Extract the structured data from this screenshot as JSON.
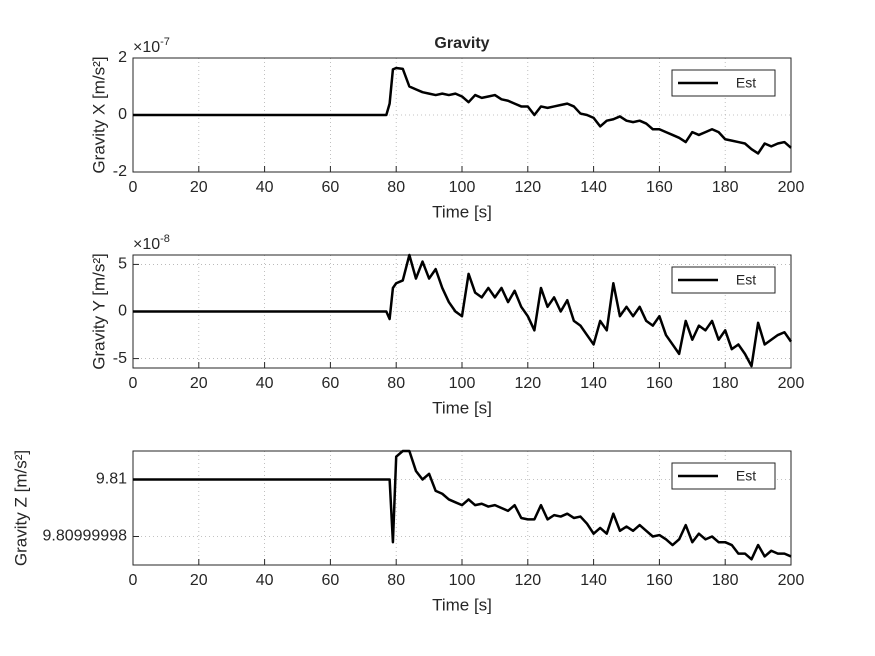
{
  "chart_data": [
    {
      "type": "line",
      "title": "Gravity",
      "xlabel": "Time [s]",
      "ylabel": "Gravity X [m/s²]",
      "y_multiplier": "×10",
      "y_exponent": "-7",
      "xlim": [
        0,
        200
      ],
      "xticks": [
        0,
        20,
        40,
        60,
        80,
        100,
        120,
        140,
        160,
        180,
        200
      ],
      "ylim": [
        -2,
        2
      ],
      "yticks": [
        -2,
        0,
        2
      ],
      "grid": true,
      "legend": "northeast",
      "x": [
        0,
        77,
        78,
        79,
        80,
        82,
        84,
        86,
        88,
        90,
        92,
        94,
        96,
        98,
        100,
        102,
        104,
        106,
        108,
        110,
        112,
        114,
        116,
        118,
        120,
        122,
        124,
        126,
        128,
        130,
        132,
        134,
        136,
        138,
        140,
        142,
        144,
        146,
        148,
        150,
        152,
        154,
        156,
        158,
        160,
        162,
        164,
        166,
        168,
        170,
        172,
        174,
        176,
        178,
        180,
        182,
        184,
        186,
        188,
        190,
        192,
        194,
        196,
        198,
        200
      ],
      "series": [
        {
          "name": "Est",
          "color": "#000000",
          "values": [
            0,
            0,
            0.4,
            1.6,
            1.65,
            1.62,
            1.0,
            0.9,
            0.8,
            0.75,
            0.7,
            0.75,
            0.7,
            0.75,
            0.65,
            0.45,
            0.7,
            0.6,
            0.65,
            0.7,
            0.55,
            0.5,
            0.4,
            0.3,
            0.3,
            0.0,
            0.3,
            0.25,
            0.3,
            0.35,
            0.4,
            0.3,
            0.05,
            0.0,
            -0.1,
            -0.4,
            -0.2,
            -0.15,
            -0.05,
            -0.2,
            -0.25,
            -0.2,
            -0.3,
            -0.5,
            -0.5,
            -0.6,
            -0.7,
            -0.8,
            -0.95,
            -0.6,
            -0.7,
            -0.6,
            -0.5,
            -0.6,
            -0.85,
            -0.9,
            -0.95,
            -1.0,
            -1.2,
            -1.35,
            -1.0,
            -1.1,
            -1.0,
            -0.95,
            -1.15
          ]
        }
      ]
    },
    {
      "type": "line",
      "xlabel": "Time [s]",
      "ylabel": "Gravity Y [m/s²]",
      "y_multiplier": "×10",
      "y_exponent": "-8",
      "xlim": [
        0,
        200
      ],
      "xticks": [
        0,
        20,
        40,
        60,
        80,
        100,
        120,
        140,
        160,
        180,
        200
      ],
      "ylim": [
        -6,
        6
      ],
      "yticks": [
        -5,
        0,
        5
      ],
      "grid": true,
      "legend": "northeast",
      "x": [
        0,
        77,
        78,
        79,
        80,
        82,
        84,
        86,
        88,
        90,
        92,
        94,
        96,
        98,
        100,
        102,
        104,
        106,
        108,
        110,
        112,
        114,
        116,
        118,
        120,
        122,
        124,
        126,
        128,
        130,
        132,
        134,
        136,
        138,
        140,
        142,
        144,
        146,
        148,
        150,
        152,
        154,
        156,
        158,
        160,
        162,
        164,
        166,
        168,
        170,
        172,
        174,
        176,
        178,
        180,
        182,
        184,
        186,
        188,
        190,
        192,
        194,
        196,
        198,
        200
      ],
      "series": [
        {
          "name": "Est",
          "color": "#000000",
          "values": [
            0,
            0,
            -0.8,
            2.5,
            3,
            3.3,
            6,
            3.5,
            5.3,
            3.5,
            4.5,
            2.5,
            1,
            0,
            -0.5,
            4,
            2,
            1.5,
            2.5,
            1.5,
            2.5,
            1,
            2.2,
            0.5,
            -0.5,
            -2,
            2.5,
            0.5,
            1.5,
            0,
            1.2,
            -1,
            -1.5,
            -2.5,
            -3.5,
            -1,
            -2,
            3,
            -0.5,
            0.5,
            -0.5,
            0.5,
            -1,
            -1.5,
            -0.5,
            -2.5,
            -3.5,
            -4.5,
            -1,
            -3,
            -1.5,
            -2,
            -1,
            -3,
            -2,
            -4,
            -3.5,
            -4.5,
            -5.8,
            -1.2,
            -3.5,
            -3,
            -2.5,
            -2.2,
            -3.2
          ]
        }
      ]
    },
    {
      "type": "line",
      "xlabel": "Time [s]",
      "ylabel": "Gravity Z [m/s²]",
      "xlim": [
        0,
        200
      ],
      "xticks": [
        0,
        20,
        40,
        60,
        80,
        100,
        120,
        140,
        160,
        180,
        200
      ],
      "ylim": [
        9.80999997,
        9.81000001
      ],
      "yticks": [
        9.80999998,
        9.81
      ],
      "grid": true,
      "legend": "northeast",
      "x": [
        0,
        77,
        78,
        79,
        80,
        82,
        84,
        86,
        88,
        90,
        92,
        94,
        96,
        98,
        100,
        102,
        104,
        106,
        108,
        110,
        112,
        114,
        116,
        118,
        120,
        122,
        124,
        126,
        128,
        130,
        132,
        134,
        136,
        138,
        140,
        142,
        144,
        146,
        148,
        150,
        152,
        154,
        156,
        158,
        160,
        162,
        164,
        166,
        168,
        170,
        172,
        174,
        176,
        178,
        180,
        182,
        184,
        186,
        188,
        190,
        192,
        194,
        196,
        198,
        200
      ],
      "series": [
        {
          "name": "Est",
          "color": "#000000",
          "values": [
            9.81,
            9.81,
            9.81,
            9.809999978,
            9.810000008,
            9.81000001,
            9.81000001,
            9.810000003,
            9.81,
            9.810000002,
            9.809999996,
            9.809999995,
            9.809999993,
            9.809999992,
            9.809999991,
            9.809999993,
            9.809999991,
            9.8099999915,
            9.8099999905,
            9.809999991,
            9.80999999,
            9.809999989,
            9.809999991,
            9.8099999865,
            9.809999986,
            9.809999986,
            9.809999991,
            9.809999986,
            9.8099999875,
            9.809999987,
            9.809999988,
            9.8099999865,
            9.809999987,
            9.8099999845,
            9.809999981,
            9.809999983,
            9.809999981,
            9.809999988,
            9.809999982,
            9.8099999835,
            9.809999982,
            9.809999984,
            9.809999982,
            9.80999998,
            9.8099999805,
            9.809999979,
            9.809999977,
            9.809999979,
            9.809999984,
            9.809999978,
            9.809999981,
            9.809999979,
            9.80999998,
            9.809999978,
            9.809999978,
            9.809999977,
            9.809999974,
            9.809999974,
            9.809999972,
            9.809999977,
            9.809999973,
            9.809999975,
            9.809999974,
            9.809999974,
            9.809999973
          ]
        }
      ]
    }
  ]
}
